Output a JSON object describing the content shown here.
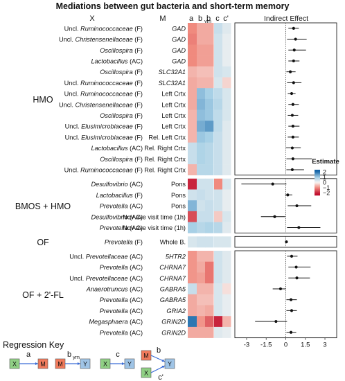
{
  "chart_data": {
    "type": "heatmap",
    "title": "Mediations between gut bacteria and short-term memory",
    "column_headers": {
      "x": "X",
      "m": "M"
    },
    "heatmap_columns": [
      "a",
      "b",
      "b",
      "c",
      "c'"
    ],
    "heatmap_column_subscripts": [
      "",
      "ym",
      "",
      "",
      ""
    ],
    "forest_title": "Indirect Effect",
    "forest_xticks": [
      -3,
      -1.5,
      0,
      1.5,
      3
    ],
    "forest_xlim": [
      -3.9,
      3.9
    ],
    "legend": {
      "title": "Estimate",
      "ticks": [
        2,
        1,
        0,
        -1,
        -2
      ],
      "range": [
        -2.5,
        2.5
      ],
      "colors": {
        "neg_strong": "#c01030",
        "neg_mid": "#f08a7e",
        "neutral": "#f7f4f2",
        "pos_mid": "#a7d0e6",
        "pos_strong": "#1565a8"
      }
    },
    "groups": [
      {
        "label": "HMO",
        "rows": [
          {
            "x": "Uncl. Ruminococcaceae (F)",
            "m": "GAD",
            "m_italic": true,
            "est": [
              -1.0,
              -0.7,
              -0.7,
              0.6,
              0.3
            ],
            "ie": 0.6,
            "lo": 0.2,
            "hi": 1.0
          },
          {
            "x": "Uncl. Christensenellaceae (F)",
            "m": "GAD",
            "m_italic": true,
            "est": [
              -1.1,
              -0.7,
              -0.7,
              0.5,
              0.2
            ],
            "ie": 0.75,
            "lo": 0.1,
            "hi": 1.6
          },
          {
            "x": "Oscillospira (F)",
            "m": "GAD",
            "m_italic": true,
            "est": [
              -1.0,
              -0.8,
              -0.8,
              0.5,
              0.2
            ],
            "ie": 0.65,
            "lo": 0.2,
            "hi": 1.55
          },
          {
            "x": "Lactobacillus (AC)",
            "m": "GAD",
            "m_italic": true,
            "est": [
              -1.0,
              -0.8,
              -0.8,
              0.5,
              0.2
            ],
            "ie": 0.6,
            "lo": 0.2,
            "hi": 1.05
          },
          {
            "x": "Oscillospira (F)",
            "m": "SLC32A1",
            "m_italic": true,
            "est": [
              -0.6,
              -0.5,
              -0.5,
              0.5,
              0.4
            ],
            "ie": 0.35,
            "lo": 0.05,
            "hi": 0.75
          },
          {
            "x": "Uncl. Ruminococcaceae (F)",
            "m": "SLC32A1",
            "m_italic": true,
            "est": [
              -0.7,
              -0.6,
              -0.6,
              0.4,
              -0.3
            ],
            "ie": 0.6,
            "lo": 0.1,
            "hi": 1.2
          },
          {
            "x": "Uncl. Ruminococcaceae (F)",
            "m": "Left Crtx",
            "m_italic": false,
            "est": [
              -0.7,
              1.2,
              1.0,
              0.7,
              0.4
            ],
            "ie": 0.45,
            "lo": 0.15,
            "hi": 0.75
          },
          {
            "x": "Uncl. Christensenellaceae (F)",
            "m": "Left Crtx",
            "m_italic": false,
            "est": [
              -0.7,
              1.3,
              1.1,
              0.8,
              0.4
            ],
            "ie": 0.55,
            "lo": 0.2,
            "hi": 1.0
          },
          {
            "x": "Oscillospira (F)",
            "m": "Left Crtx",
            "m_italic": false,
            "est": [
              -0.6,
              1.2,
              1.1,
              0.7,
              0.4
            ],
            "ie": 0.5,
            "lo": 0.15,
            "hi": 0.95
          },
          {
            "x": "Uncl. Elusimicrobiaceae (F)",
            "m": "Left Crtx",
            "m_italic": false,
            "est": [
              -0.6,
              1.4,
              1.6,
              0.7,
              0.3
            ],
            "ie": 0.55,
            "lo": 0.2,
            "hi": 1.05
          },
          {
            "x": "Uncl. Elusimicrobiaceae (F)",
            "m": "Rel. Left Crtx",
            "m_italic": false,
            "est": [
              -0.6,
              1.1,
              1.0,
              0.6,
              0.3
            ],
            "ie": 0.55,
            "lo": 0.15,
            "hi": 1.0
          },
          {
            "x": "Lactobacillus (AC)",
            "m": "Rel. Right Crtx",
            "m_italic": false,
            "est": [
              0.6,
              0.9,
              0.8,
              0.6,
              0.3
            ],
            "ie": 0.5,
            "lo": 0.0,
            "hi": 1.15
          },
          {
            "x": "Oscillospira (F)",
            "m": "Rel. Right Crtx",
            "m_italic": false,
            "est": [
              0.6,
              0.9,
              0.8,
              0.6,
              0.3
            ],
            "ie": 0.55,
            "lo": 0.05,
            "hi": 2.0
          },
          {
            "x": "Uncl. Ruminococcaceae (F)",
            "m": "Rel. Right Crtx",
            "m_italic": false,
            "est": [
              -0.6,
              0.8,
              0.8,
              0.6,
              0.3
            ],
            "ie": 0.5,
            "lo": 0.05,
            "hi": 1.4
          }
        ]
      },
      {
        "label": "BMOS + HMO",
        "rows": [
          {
            "x": "Desulfovibrio (AC)",
            "m": "Pons",
            "m_italic": false,
            "est": [
              -2.0,
              0.5,
              0.5,
              -1.0,
              0.4
            ],
            "ie": -1.0,
            "lo": -3.4,
            "hi": 0.05
          },
          {
            "x": "Lactobacillus (F)",
            "m": "Pons",
            "m_italic": false,
            "est": [
              0.5,
              0.6,
              0.5,
              0.5,
              0.2
            ],
            "ie": 0.15,
            "lo": -0.05,
            "hi": 0.5
          },
          {
            "x": "Prevotella (AC)",
            "m": "Pons",
            "m_italic": false,
            "est": [
              1.3,
              0.5,
              0.6,
              0.5,
              0.2
            ],
            "ie": 0.85,
            "lo": 0.15,
            "hi": 1.95
          },
          {
            "x": "Desulfovibrio (AC)",
            "m": "Nov ave visit time (1h)",
            "m_italic": false,
            "est": [
              -1.6,
              0.6,
              0.6,
              -0.4,
              0.4
            ],
            "ie": -0.85,
            "lo": -1.9,
            "hi": -0.05
          },
          {
            "x": "Prevotella (AC)",
            "m": "Nov ave visit time (1h)",
            "m_italic": false,
            "est": [
              1.0,
              0.8,
              0.9,
              0.8,
              0.3
            ],
            "ie": 1.0,
            "lo": 0.1,
            "hi": 2.65
          }
        ]
      },
      {
        "label": "OF",
        "rows": [
          {
            "x": "Prevotella (F)",
            "m": "Whole B.",
            "m_italic": false,
            "est": [
              0.4,
              0.5,
              0.5,
              0.4,
              0.4
            ],
            "ie": 0.05,
            "lo": -0.05,
            "hi": 0.15
          }
        ]
      },
      {
        "label": "OF + 2'-FL",
        "rows": [
          {
            "x": "Uncl. Prevotellaceae (AC)",
            "m": "5HTR2",
            "m_italic": true,
            "est": [
              -0.9,
              -0.6,
              -0.6,
              0.5,
              0.3
            ],
            "ie": 0.45,
            "lo": 0.1,
            "hi": 0.9
          },
          {
            "x": "Prevotella (AC)",
            "m": "CHRNA7",
            "m_italic": true,
            "est": [
              -0.9,
              -0.7,
              -1.2,
              0.5,
              0.3
            ],
            "ie": 0.8,
            "lo": 0.2,
            "hi": 1.9
          },
          {
            "x": "Uncl. Prevotellaceae (AC)",
            "m": "CHRNA7",
            "m_italic": true,
            "est": [
              -0.9,
              -0.8,
              -1.2,
              0.5,
              0.3
            ],
            "ie": 0.85,
            "lo": 0.2,
            "hi": 1.85
          },
          {
            "x": "Anaerotruncus (AC)",
            "m": "GABRA5",
            "m_italic": true,
            "est": [
              0.6,
              -0.6,
              -0.6,
              0.4,
              -0.2
            ],
            "ie": -0.4,
            "lo": -1.0,
            "hi": 0.0
          },
          {
            "x": "Prevotella (AC)",
            "m": "GABRA5",
            "m_italic": true,
            "est": [
              -0.7,
              -0.5,
              -0.5,
              0.4,
              0.2
            ],
            "ie": 0.4,
            "lo": 0.05,
            "hi": 0.85
          },
          {
            "x": "Prevotella (AC)",
            "m": "GRIA2",
            "m_italic": true,
            "est": [
              -0.7,
              -0.6,
              -0.7,
              0.4,
              0.2
            ],
            "ie": 0.45,
            "lo": 0.05,
            "hi": 0.85
          },
          {
            "x": "Megasphaera (AC)",
            "m": "GRIN2D",
            "m_italic": true,
            "est": [
              2.0,
              -0.9,
              -1.4,
              -2.0,
              -0.6
            ],
            "ie": -0.75,
            "lo": -2.35,
            "hi": 0.1
          },
          {
            "x": "Prevotella (AC)",
            "m": "GRIN2D",
            "m_italic": true,
            "est": [
              -0.7,
              -0.7,
              -0.7,
              0.3,
              0.2
            ],
            "ie": 0.4,
            "lo": 0.05,
            "hi": 0.8
          }
        ]
      }
    ]
  },
  "regression_key": {
    "title": "Regression Key",
    "diagrams": [
      {
        "from": "X",
        "to": "M",
        "path": "a",
        "path_sub": ""
      },
      {
        "from": "M",
        "to": "Y",
        "path": "b",
        "path_sub": "ym"
      },
      {
        "from": "X",
        "to": "Y",
        "path": "c",
        "path_sub": ""
      },
      {
        "from_a": "M",
        "from_b": "X",
        "to": "Y",
        "path_a": "b",
        "path_b": "c'"
      }
    ],
    "colors": {
      "X": "#8fcf84",
      "M": "#f07a5c",
      "Y": "#9fc4e6",
      "arrow": "#3a6cd6",
      "box_border": "#555555"
    }
  }
}
